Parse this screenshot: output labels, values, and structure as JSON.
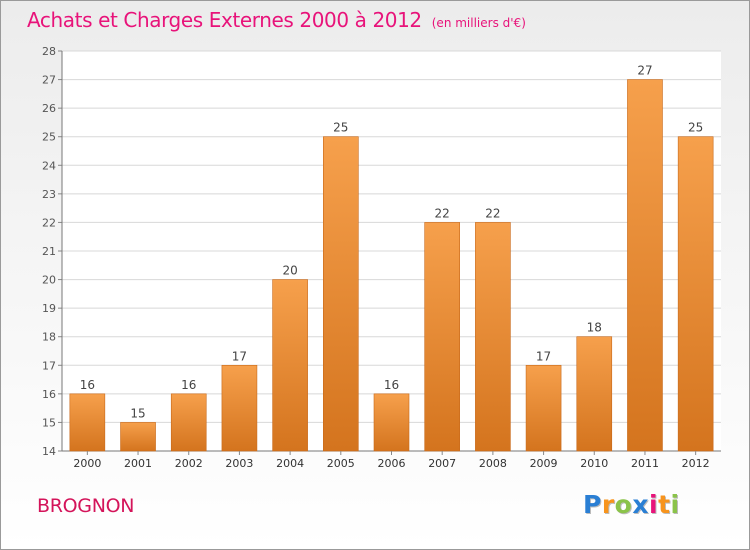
{
  "title": "Achats et Charges Externes 2000 à 2012",
  "unit": "(en milliers d'€)",
  "commune": "BROGNON",
  "logo": {
    "text": "Proxiti",
    "letters": [
      {
        "ch": "P",
        "color": "#2a7fd4"
      },
      {
        "ch": "r",
        "color": "#f7941d"
      },
      {
        "ch": "o",
        "color": "#8bc34a"
      },
      {
        "ch": "x",
        "color": "#2a7fd4"
      },
      {
        "ch": "i",
        "color": "#e8137a"
      },
      {
        "ch": "t",
        "color": "#f7941d"
      },
      {
        "ch": "i",
        "color": "#8bc34a"
      }
    ]
  },
  "colors": {
    "title": "#e8137a",
    "bar_light": "#f6a04c",
    "bar_dark": "#d4741e",
    "grid": "#d8d8d8"
  },
  "chart_data": {
    "type": "bar",
    "title": "Achats et Charges Externes 2000 à 2012",
    "xlabel": "",
    "ylabel": "",
    "categories": [
      "2000",
      "2001",
      "2002",
      "2003",
      "2004",
      "2005",
      "2006",
      "2007",
      "2008",
      "2009",
      "2010",
      "2011",
      "2012"
    ],
    "values": [
      16,
      15,
      16,
      17,
      20,
      25,
      16,
      22,
      22,
      17,
      18,
      27,
      25
    ],
    "ylim": [
      14,
      28
    ],
    "yticks": [
      14,
      15,
      16,
      17,
      18,
      19,
      20,
      21,
      22,
      23,
      24,
      25,
      26,
      27,
      28
    ],
    "grid": true,
    "legend": "none"
  }
}
